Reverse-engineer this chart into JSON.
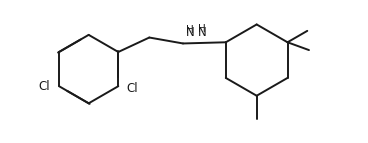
{
  "bg_color": "#ffffff",
  "line_color": "#1a1a1a",
  "line_width": 1.4,
  "text_color": "#1a1a1a",
  "font_size": 8.5,
  "figsize": [
    3.68,
    1.43
  ],
  "dpi": 100,
  "xlim": [
    -0.5,
    9.5
  ],
  "ylim": [
    -1.2,
    3.2
  ]
}
